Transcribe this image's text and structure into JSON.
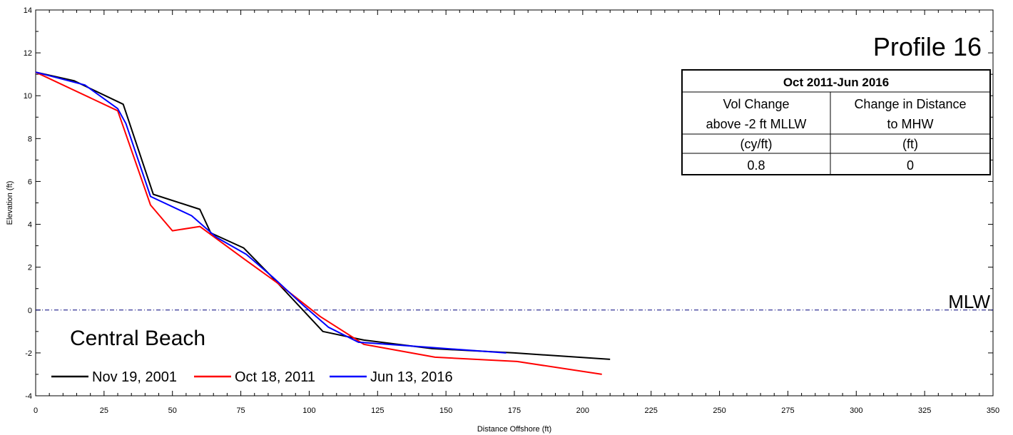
{
  "chart_data": {
    "type": "line",
    "title": "Profile 16",
    "site_label": "Central Beach",
    "xlabel": "Distance Offshore (ft)",
    "ylabel": "Elevation (ft)",
    "xlim": [
      0,
      350
    ],
    "ylim": [
      -4,
      14
    ],
    "x_ticks": [
      0,
      25,
      50,
      75,
      100,
      125,
      150,
      175,
      200,
      225,
      250,
      275,
      300,
      325,
      350
    ],
    "y_ticks": [
      -4,
      -2,
      0,
      2,
      4,
      6,
      8,
      10,
      12,
      14
    ],
    "reference_line": {
      "label": "MLW",
      "y": 0,
      "color": "#00007f"
    },
    "series": [
      {
        "name": "Nov 19, 2001",
        "color": "#000000",
        "points": [
          [
            0,
            11.1
          ],
          [
            14,
            10.7
          ],
          [
            32,
            9.6
          ],
          [
            43,
            5.4
          ],
          [
            60,
            4.7
          ],
          [
            64,
            3.6
          ],
          [
            76,
            2.9
          ],
          [
            86,
            1.6
          ],
          [
            105,
            -1.0
          ],
          [
            120,
            -1.4
          ],
          [
            145,
            -1.8
          ],
          [
            175,
            -2.0
          ],
          [
            210,
            -2.3
          ]
        ]
      },
      {
        "name": "Oct 18, 2011",
        "color": "#ff0000",
        "points": [
          [
            0,
            11.1
          ],
          [
            30,
            9.3
          ],
          [
            42,
            4.9
          ],
          [
            50,
            3.7
          ],
          [
            60,
            3.9
          ],
          [
            76,
            2.4
          ],
          [
            88,
            1.3
          ],
          [
            104,
            -0.3
          ],
          [
            120,
            -1.6
          ],
          [
            146,
            -2.2
          ],
          [
            176,
            -2.4
          ],
          [
            207,
            -3.0
          ]
        ]
      },
      {
        "name": "Jun 13, 2016",
        "color": "#0000ff",
        "points": [
          [
            0,
            11.1
          ],
          [
            18,
            10.5
          ],
          [
            30,
            9.4
          ],
          [
            33,
            8.7
          ],
          [
            42,
            5.3
          ],
          [
            57,
            4.4
          ],
          [
            66,
            3.4
          ],
          [
            77,
            2.6
          ],
          [
            87,
            1.5
          ],
          [
            98,
            0.2
          ],
          [
            107,
            -0.8
          ],
          [
            118,
            -1.5
          ],
          [
            145,
            -1.75
          ],
          [
            172,
            -2.0
          ]
        ]
      }
    ],
    "legend_position": "bottom-left",
    "grid": false
  },
  "table": {
    "header": "Oct 2011-Jun 2016",
    "col1_lines": [
      "Vol Change",
      "above -2 ft MLLW",
      "(cy/ft)"
    ],
    "col2_lines": [
      "Change in Distance",
      "to MHW",
      "(ft)"
    ],
    "col1_value": "0.8",
    "col2_value": "0"
  }
}
